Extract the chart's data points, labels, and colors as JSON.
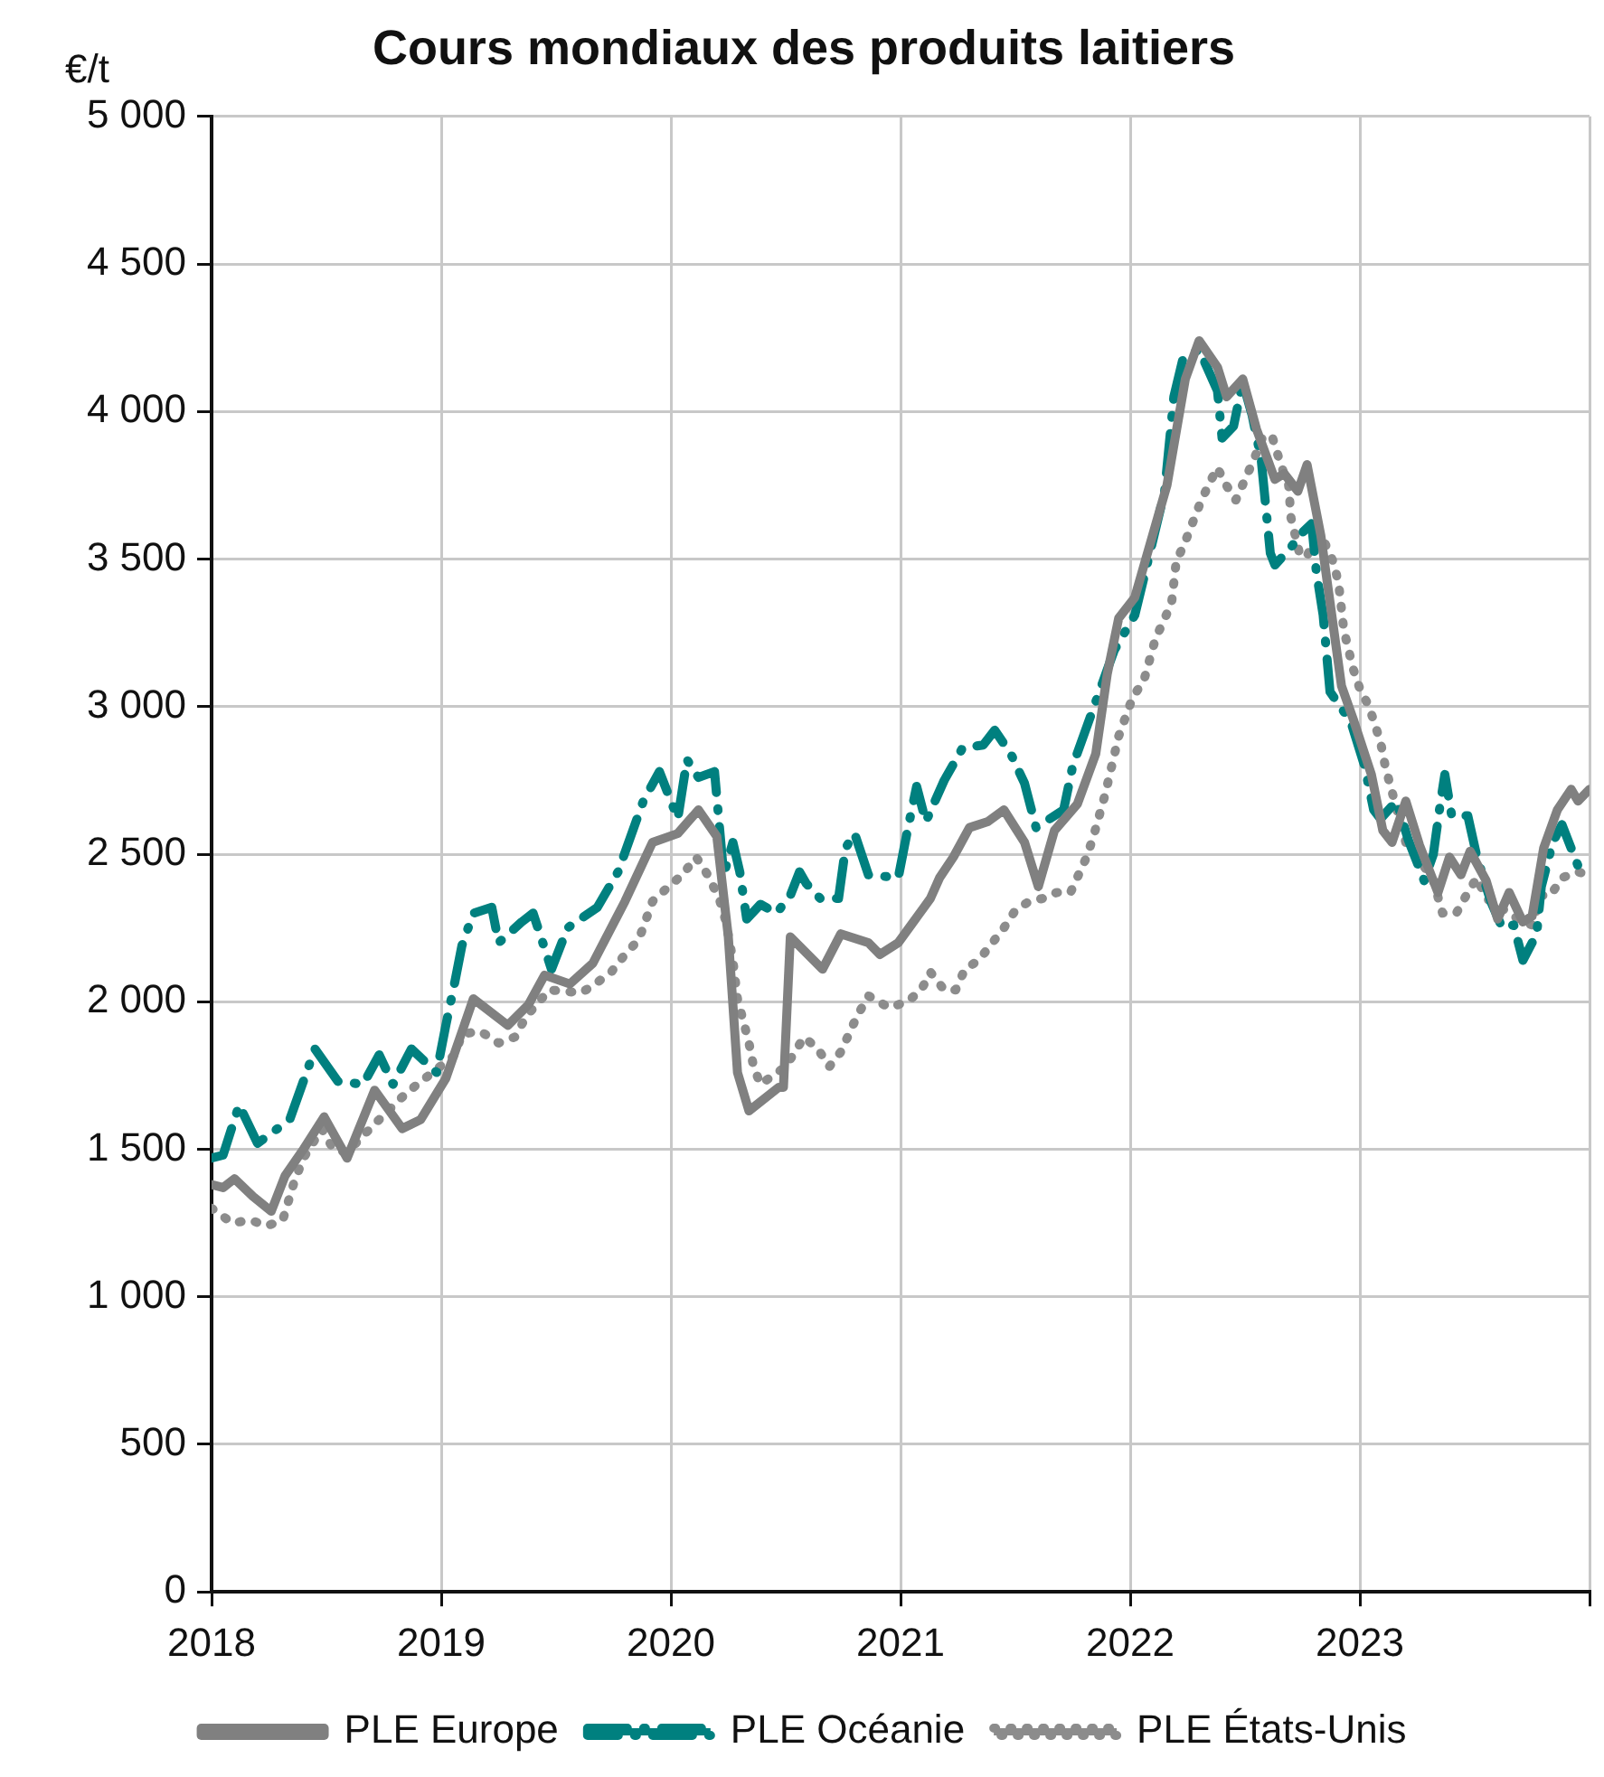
{
  "chart_data": {
    "type": "line",
    "title": "Cours mondiaux des produits laitiers",
    "ylabel": "€/t",
    "xlim": [
      2018,
      2024
    ],
    "xticks": [
      2018,
      2019,
      2020,
      2021,
      2022,
      2023,
      {
        "value": 2024,
        "label": null
      }
    ],
    "ylim": [
      0,
      5000
    ],
    "yticks": [
      {
        "value": 0,
        "label": "0"
      },
      {
        "value": 500,
        "label": "500"
      },
      {
        "value": 1000,
        "label": "1 000"
      },
      {
        "value": 1500,
        "label": "1 500"
      },
      {
        "value": 2000,
        "label": "2 000"
      },
      {
        "value": 2500,
        "label": "2 500"
      },
      {
        "value": 3000,
        "label": "3 000"
      },
      {
        "value": 3500,
        "label": "3 500"
      },
      {
        "value": 4000,
        "label": "4 000"
      },
      {
        "value": 4500,
        "label": "4 500"
      },
      {
        "value": 5000,
        "label": "5 000"
      }
    ],
    "grid": true,
    "legend": "bottom",
    "marker": "none",
    "series": [
      {
        "name": "PLE Europe",
        "color": "#808080",
        "line_style": "solid",
        "x": [
          2018.0,
          2018.05,
          2018.1,
          2018.18,
          2018.26,
          2018.32,
          2018.4,
          2018.49,
          2018.59,
          2018.71,
          2018.83,
          2018.91,
          2019.02,
          2019.14,
          2019.29,
          2019.38,
          2019.45,
          2019.56,
          2019.66,
          2019.8,
          2019.92,
          2020.03,
          2020.12,
          2020.2,
          2020.25,
          2020.29,
          2020.34,
          2020.47,
          2020.49,
          2020.52,
          2020.66,
          2020.74,
          2020.86,
          2020.91,
          2020.99,
          2021.13,
          2021.17,
          2021.23,
          2021.3,
          2021.38,
          2021.45,
          2021.54,
          2021.6,
          2021.67,
          2021.77,
          2021.85,
          2021.9,
          2021.95,
          2022.02,
          2022.16,
          2022.24,
          2022.3,
          2022.38,
          2022.42,
          2022.49,
          2022.55,
          2022.63,
          2022.67,
          2022.73,
          2022.77,
          2022.83,
          2022.92,
          2022.97,
          2023.05,
          2023.1,
          2023.14,
          2023.2,
          2023.26,
          2023.34,
          2023.39,
          2023.44,
          2023.48,
          2023.55,
          2023.6,
          2023.65,
          2023.71,
          2023.75,
          2023.8,
          2023.86,
          2023.92,
          2023.95,
          2024.0
        ],
        "values": [
          1380,
          1370,
          1400,
          1340,
          1290,
          1410,
          1500,
          1610,
          1470,
          1700,
          1570,
          1600,
          1740,
          2010,
          1920,
          1990,
          2090,
          2060,
          2130,
          2340,
          2540,
          2570,
          2650,
          2560,
          2220,
          1760,
          1630,
          1710,
          1710,
          2220,
          2110,
          2230,
          2200,
          2160,
          2200,
          2350,
          2420,
          2490,
          2590,
          2610,
          2650,
          2540,
          2390,
          2580,
          2670,
          2840,
          3110,
          3300,
          3370,
          3750,
          4110,
          4240,
          4150,
          4050,
          4110,
          3940,
          3770,
          3790,
          3730,
          3820,
          3580,
          3070,
          2960,
          2770,
          2580,
          2540,
          2680,
          2530,
          2370,
          2490,
          2430,
          2510,
          2410,
          2280,
          2370,
          2270,
          2290,
          2520,
          2650,
          2720,
          2680,
          2720
        ]
      },
      {
        "name": "PLE Océanie",
        "color": "#00807f",
        "line_style": "dashed",
        "x": [
          2018.0,
          2018.05,
          2018.12,
          2018.2,
          2018.34,
          2018.45,
          2018.55,
          2018.66,
          2018.73,
          2018.79,
          2018.87,
          2018.98,
          2019.02,
          2019.06,
          2019.09,
          2019.14,
          2019.22,
          2019.25,
          2019.35,
          2019.4,
          2019.48,
          2019.55,
          2019.68,
          2019.77,
          2019.88,
          2019.95,
          2020.03,
          2020.07,
          2020.12,
          2020.19,
          2020.23,
          2020.27,
          2020.3,
          2020.33,
          2020.39,
          2020.46,
          2020.52,
          2020.56,
          2020.59,
          2020.65,
          2020.73,
          2020.76,
          2020.8,
          2020.86,
          2020.99,
          2021.03,
          2021.07,
          2021.11,
          2021.19,
          2021.27,
          2021.36,
          2021.41,
          2021.48,
          2021.54,
          2021.59,
          2021.71,
          2021.75,
          2021.87,
          2021.93,
          2022.02,
          2022.07,
          2022.15,
          2022.19,
          2022.23,
          2022.3,
          2022.38,
          2022.4,
          2022.45,
          2022.49,
          2022.53,
          2022.57,
          2022.59,
          2022.61,
          2022.63,
          2022.7,
          2022.75,
          2022.79,
          2022.81,
          2022.84,
          2022.87,
          2022.96,
          2023.02,
          2023.06,
          2023.09,
          2023.16,
          2023.21,
          2023.28,
          2023.32,
          2023.35,
          2023.37,
          2023.4,
          2023.47,
          2023.51,
          2023.57,
          2023.62,
          2023.67,
          2023.71,
          2023.77,
          2023.79,
          2023.84,
          2023.88,
          2023.95,
          2023.99
        ],
        "values": [
          1470,
          1480,
          1650,
          1520,
          1600,
          1840,
          1730,
          1720,
          1820,
          1720,
          1840,
          1760,
          1920,
          2070,
          2190,
          2300,
          2320,
          2200,
          2270,
          2300,
          2110,
          2250,
          2320,
          2440,
          2680,
          2780,
          2620,
          2820,
          2760,
          2780,
          2430,
          2540,
          2440,
          2280,
          2330,
          2300,
          2360,
          2440,
          2400,
          2350,
          2350,
          2520,
          2570,
          2430,
          2420,
          2580,
          2730,
          2610,
          2750,
          2860,
          2870,
          2920,
          2840,
          2740,
          2590,
          2650,
          2800,
          3060,
          3190,
          3310,
          3470,
          3730,
          4050,
          4180,
          4210,
          4070,
          3910,
          3950,
          4100,
          3990,
          3840,
          3680,
          3520,
          3480,
          3540,
          3590,
          3620,
          3460,
          3310,
          3050,
          2950,
          2800,
          2650,
          2620,
          2680,
          2550,
          2410,
          2500,
          2670,
          2770,
          2630,
          2630,
          2490,
          2340,
          2250,
          2260,
          2140,
          2230,
          2390,
          2540,
          2600,
          2460,
          2440
        ]
      },
      {
        "name": "PLE États-Unis",
        "color": "#8c8c8c",
        "line_style": "dotted",
        "x": [
          2018.0,
          2018.09,
          2018.17,
          2018.24,
          2018.31,
          2018.36,
          2018.4,
          2018.48,
          2018.53,
          2018.59,
          2018.69,
          2018.82,
          2018.88,
          2019.06,
          2019.09,
          2019.17,
          2019.25,
          2019.32,
          2019.37,
          2019.47,
          2019.61,
          2019.67,
          2019.74,
          2019.8,
          2019.86,
          2019.92,
          2019.99,
          2020.05,
          2020.11,
          2020.16,
          2020.21,
          2020.24,
          2020.27,
          2020.29,
          2020.34,
          2020.36,
          2020.39,
          2020.5,
          2020.58,
          2020.64,
          2020.69,
          2020.74,
          2020.81,
          2020.86,
          2020.95,
          2021.03,
          2021.09,
          2021.13,
          2021.19,
          2021.24,
          2021.28,
          2021.34,
          2021.4,
          2021.45,
          2021.5,
          2021.56,
          2021.62,
          2021.68,
          2021.74,
          2021.81,
          2021.84,
          2021.89,
          2021.95,
          2022.01,
          2022.06,
          2022.11,
          2022.18,
          2022.2,
          2022.24,
          2022.3,
          2022.34,
          2022.38,
          2022.41,
          2022.46,
          2022.5,
          2022.54,
          2022.58,
          2022.62,
          2022.66,
          2022.69,
          2022.7,
          2022.74,
          2022.77,
          2022.81,
          2022.85,
          2022.89,
          2022.91,
          2022.93,
          2022.97,
          2023.0,
          2023.04,
          2023.09,
          2023.11,
          2023.13,
          2023.2,
          2023.27,
          2023.32,
          2023.36,
          2023.42,
          2023.47,
          2023.51,
          2023.55,
          2023.61,
          2023.67,
          2023.71,
          2023.75,
          2023.79,
          2023.83,
          2023.88,
          2023.95,
          2023.99
        ],
        "values": [
          1300,
          1250,
          1260,
          1240,
          1260,
          1390,
          1470,
          1570,
          1500,
          1490,
          1570,
          1670,
          1710,
          1820,
          1890,
          1900,
          1860,
          1880,
          1950,
          2040,
          2030,
          2060,
          2100,
          2160,
          2210,
          2340,
          2390,
          2430,
          2490,
          2430,
          2350,
          2270,
          2140,
          2010,
          1860,
          1780,
          1720,
          1780,
          1880,
          1840,
          1780,
          1830,
          1950,
          2020,
          1980,
          2000,
          2040,
          2100,
          2040,
          2040,
          2110,
          2140,
          2200,
          2250,
          2310,
          2340,
          2350,
          2370,
          2370,
          2490,
          2560,
          2700,
          2900,
          3030,
          3090,
          3230,
          3350,
          3490,
          3560,
          3680,
          3750,
          3810,
          3760,
          3700,
          3770,
          3840,
          3920,
          3910,
          3810,
          3750,
          3640,
          3510,
          3510,
          3580,
          3550,
          3480,
          3400,
          3260,
          3130,
          3060,
          3000,
          2880,
          2800,
          2740,
          2540,
          2470,
          2410,
          2300,
          2300,
          2370,
          2420,
          2350,
          2320,
          2290,
          2270,
          2260,
          2360,
          2360,
          2420,
          2440,
          2430
        ]
      }
    ]
  }
}
